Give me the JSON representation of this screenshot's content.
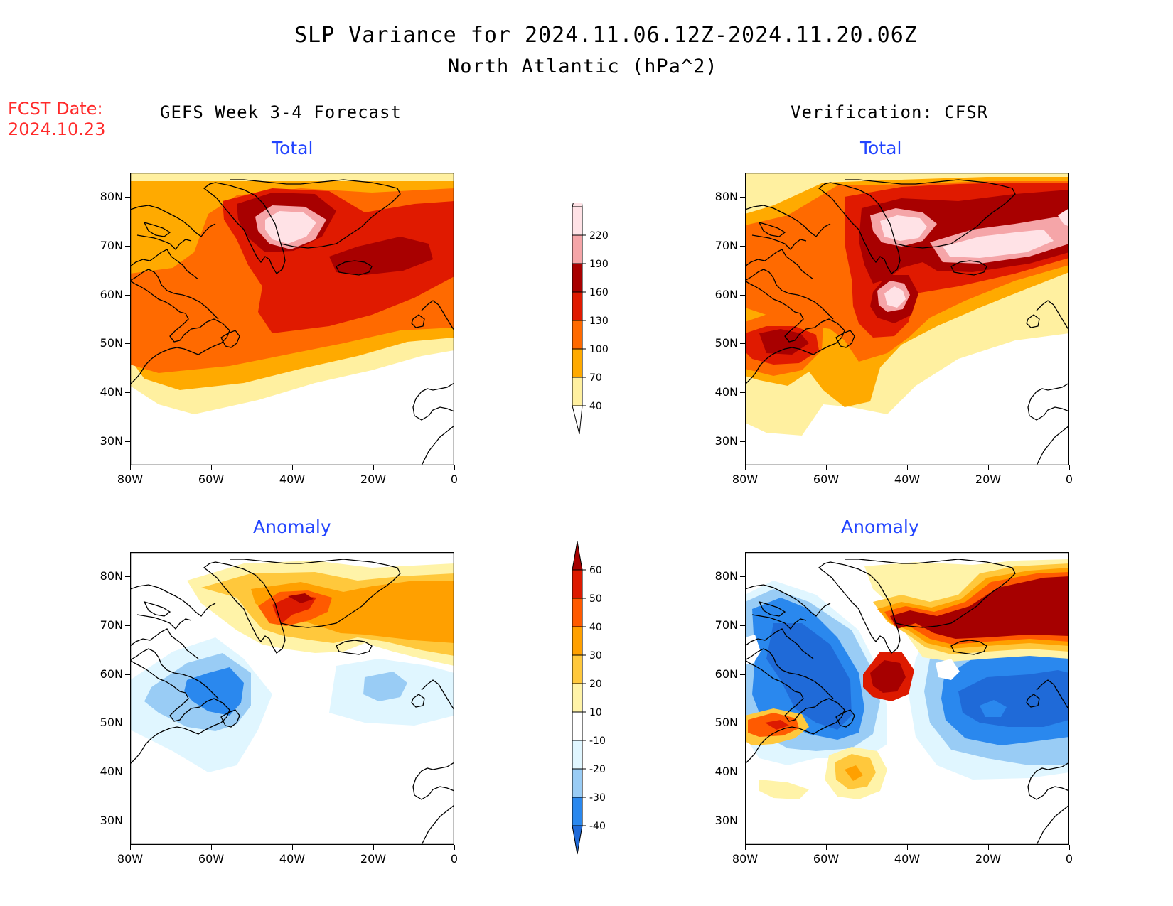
{
  "header": {
    "title": "SLP Variance for 2024.11.06.12Z-2024.11.20.06Z",
    "subtitle": "North Atlantic (hPa^2)"
  },
  "fcst": {
    "label": "FCST Date:",
    "date": "2024.10.23"
  },
  "columns": {
    "left": "GEFS Week 3-4 Forecast",
    "right": "Verification: CFSR"
  },
  "panel_titles": {
    "total": "Total",
    "anomaly": "Anomaly"
  },
  "axes": {
    "lat_labels": [
      "30N",
      "40N",
      "50N",
      "60N",
      "70N",
      "80N"
    ],
    "lon_labels": [
      "80W",
      "60W",
      "40W",
      "20W",
      "0"
    ]
  },
  "colorbars": {
    "total": {
      "levels": [
        "40",
        "70",
        "100",
        "130",
        "160",
        "190",
        "220"
      ],
      "colors": [
        "#fff0a0",
        "#ffaa00",
        "#ff6a00",
        "#e01a00",
        "#a80000",
        "#f5a5a8",
        "#ffe2e6"
      ]
    },
    "anomaly": {
      "levels": [
        "-40",
        "-30",
        "-20",
        "-10",
        "10",
        "20",
        "30",
        "40",
        "50",
        "60"
      ],
      "colors": [
        "#1f6ad8",
        "#2a88ee",
        "#99ccf5",
        "#e0f6ff",
        "#ffffff",
        "#fff3a8",
        "#ffc83c",
        "#ffa000",
        "#ff5a00",
        "#dd1a00",
        "#a60000"
      ]
    }
  },
  "chart_data": [
    {
      "type": "heatmap",
      "panel": "GEFS Week 3-4 Forecast / Total",
      "units": "hPa^2",
      "lon_range": [
        -80,
        0
      ],
      "lat_range": [
        25,
        85
      ],
      "levels": [
        40,
        70,
        100,
        130,
        160,
        190,
        220
      ],
      "features": [
        {
          "lon": -37,
          "lat": 73,
          "value": 220
        },
        {
          "lon": -20,
          "lat": 65,
          "value": 175
        },
        {
          "lon": -45,
          "lat": 58,
          "value": 140
        },
        {
          "lon": -65,
          "lat": 52,
          "value": 110
        },
        {
          "lon": -70,
          "lat": 37,
          "value": 40
        }
      ]
    },
    {
      "type": "heatmap",
      "panel": "Verification: CFSR / Total",
      "units": "hPa^2",
      "lon_range": [
        -80,
        0
      ],
      "lat_range": [
        25,
        85
      ],
      "levels": [
        40,
        70,
        100,
        130,
        160,
        190,
        220
      ],
      "features": [
        {
          "lon": -43,
          "lat": 73,
          "value": 220
        },
        {
          "lon": -12,
          "lat": 68,
          "value": 220
        },
        {
          "lon": -43,
          "lat": 55,
          "value": 220
        },
        {
          "lon": -68,
          "lat": 48,
          "value": 170
        },
        {
          "lon": -25,
          "lat": 60,
          "value": 130
        }
      ]
    },
    {
      "type": "heatmap",
      "panel": "GEFS Week 3-4 Forecast / Anomaly",
      "units": "hPa^2",
      "lon_range": [
        -80,
        0
      ],
      "lat_range": [
        25,
        85
      ],
      "levels": [
        -40,
        -30,
        -20,
        -10,
        10,
        20,
        30,
        40,
        50,
        60
      ],
      "features": [
        {
          "lon": -36,
          "lat": 74,
          "value": 55
        },
        {
          "lon": -10,
          "lat": 70,
          "value": 35
        },
        {
          "lon": -57,
          "lat": 53,
          "value": -30
        },
        {
          "lon": -20,
          "lat": 55,
          "value": -20
        }
      ]
    },
    {
      "type": "heatmap",
      "panel": "Verification: CFSR / Anomaly",
      "units": "hPa^2",
      "lon_range": [
        -80,
        0
      ],
      "lat_range": [
        25,
        85
      ],
      "levels": [
        -40,
        -30,
        -20,
        -10,
        10,
        20,
        30,
        40,
        50,
        60
      ],
      "features": [
        {
          "lon": -20,
          "lat": 72,
          "value": 65
        },
        {
          "lon": -43,
          "lat": 58,
          "value": 60
        },
        {
          "lon": -70,
          "lat": 47,
          "value": 45
        },
        {
          "lon": -52,
          "lat": 35,
          "value": 30
        },
        {
          "lon": -60,
          "lat": 62,
          "value": -35
        },
        {
          "lon": -15,
          "lat": 53,
          "value": -35
        },
        {
          "lon": -28,
          "lat": 50,
          "value": -25
        }
      ]
    }
  ]
}
